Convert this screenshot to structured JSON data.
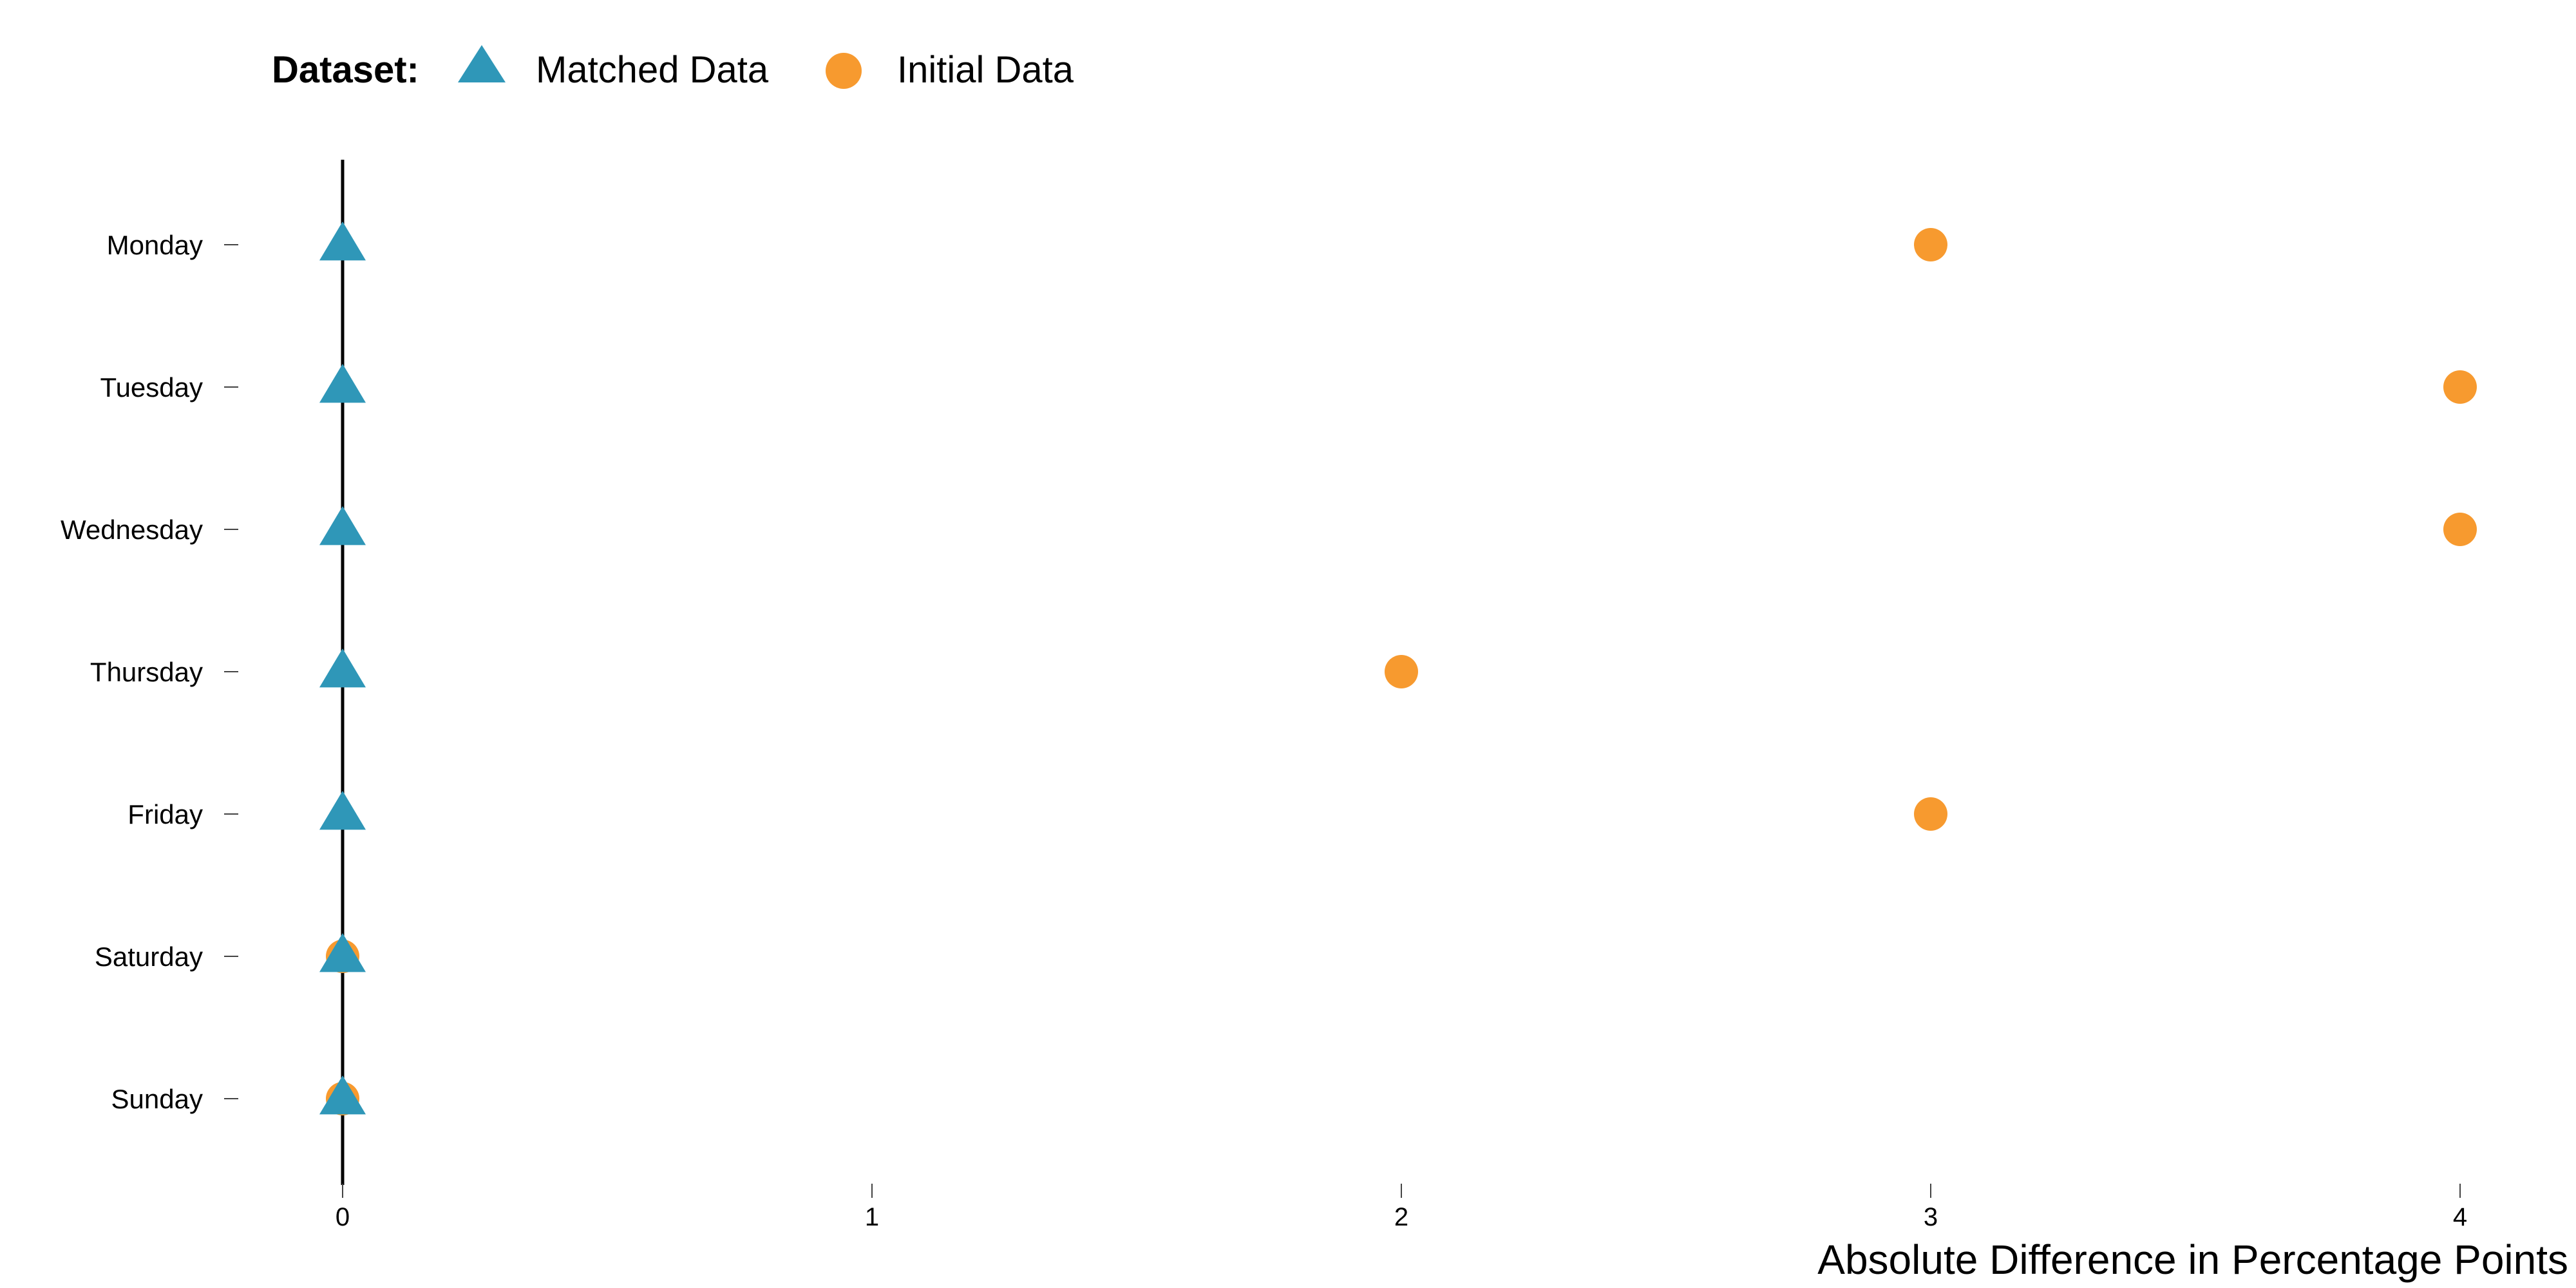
{
  "legend": {
    "title": "Dataset:",
    "items": [
      {
        "label": "Matched Data",
        "shape": "triangle",
        "color": "#2f97b8"
      },
      {
        "label": "Initial Data",
        "shape": "circle",
        "color": "#f79a2f"
      }
    ]
  },
  "chart_data": {
    "type": "scatter",
    "orientation": "horizontal",
    "categories": [
      "Monday",
      "Tuesday",
      "Wednesday",
      "Thursday",
      "Friday",
      "Saturday",
      "Sunday"
    ],
    "series": [
      {
        "name": "Matched Data",
        "shape": "triangle",
        "color": "#2f97b8",
        "values": [
          0,
          0,
          0,
          0,
          0,
          0,
          0
        ]
      },
      {
        "name": "Initial Data",
        "shape": "circle",
        "color": "#f79a2f",
        "values": [
          3,
          4,
          4,
          2,
          3,
          0,
          0
        ]
      }
    ],
    "x_ticks": [
      "0",
      "1",
      "2",
      "3",
      "4"
    ],
    "xlim": [
      0,
      4
    ],
    "xlabel": "Absolute Difference in Percentage Points",
    "ylabel": "",
    "grid": false,
    "legend_position": "top-left"
  }
}
